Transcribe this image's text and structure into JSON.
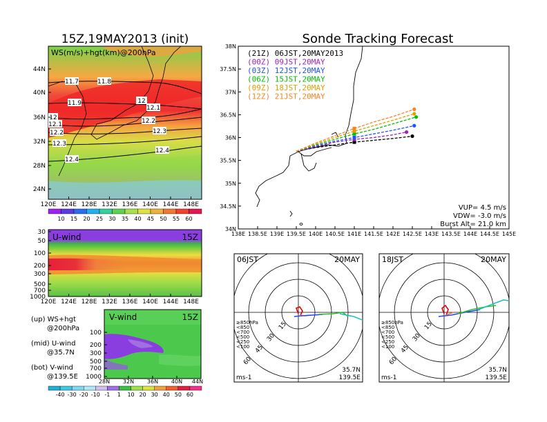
{
  "chart_data": [
    {
      "id": "ws_map",
      "type": "heatmap",
      "title": "15Z,19MAY2013 (init)",
      "label": "WS(m/s)+hgt(km)@200hPa",
      "x_ticks": [
        "120E",
        "124E",
        "128E",
        "132E",
        "136E",
        "140E",
        "144E",
        "148E"
      ],
      "y_ticks": [
        "44N",
        "40N",
        "36N",
        "32N",
        "28N",
        "24N"
      ],
      "contour_labels": [
        "11.7",
        "11.8",
        "11.9",
        "12",
        "12.1",
        "12",
        "12.1",
        "12.2",
        "12.2",
        "12.3",
        "12.3",
        "12.4",
        "12.4"
      ],
      "colorbar": [
        "10",
        "15",
        "20",
        "25",
        "30",
        "35",
        "40",
        "45",
        "50",
        "55",
        "60"
      ]
    },
    {
      "id": "u_wind",
      "type": "heatmap",
      "label": "U-wind",
      "time": "15Z",
      "x_ticks": [
        "120E",
        "124E",
        "128E",
        "132E",
        "136E",
        "140E",
        "144E",
        "148E"
      ],
      "y_ticks": [
        "30",
        "50",
        "100",
        "200",
        "300",
        "500",
        "700",
        "1000"
      ]
    },
    {
      "id": "v_wind",
      "type": "heatmap",
      "label": "V-wind",
      "time": "15Z",
      "x_ticks": [
        "28N",
        "32N",
        "36N",
        "40N",
        "44N"
      ],
      "y_ticks": [
        "100",
        "200",
        "300",
        "500",
        "700",
        "1000"
      ],
      "colorbar": [
        "-40",
        "-30",
        "-20",
        "-10",
        "-1",
        "1",
        "10",
        "20",
        "30",
        "40",
        "50",
        "60"
      ]
    },
    {
      "id": "tracking",
      "type": "line",
      "title": "Sonde Tracking Forecast",
      "x_ticks": [
        "138E",
        "138.5E",
        "139E",
        "139.5E",
        "140E",
        "140.5E",
        "141E",
        "141.5E",
        "142E",
        "142.5E",
        "143E",
        "143.5E",
        "144E",
        "144.5E",
        "145E"
      ],
      "y_ticks": [
        "38N",
        "37.5N",
        "37N",
        "36.5N",
        "36N",
        "35.5N",
        "35N",
        "34.5N",
        "34N"
      ],
      "xlim": [
        138,
        145
      ],
      "ylim": [
        34,
        38
      ],
      "series": [
        {
          "name": "(21Z) 06JST,20MAY2013",
          "color": "#000000",
          "x": [
            139.5,
            140.0,
            140.5,
            141.0,
            141.5,
            142.0,
            142.5
          ],
          "y": [
            35.7,
            35.78,
            35.84,
            35.9,
            35.94,
            35.98,
            36.03
          ]
        },
        {
          "name": "(00Z) 09JST,20MAY",
          "color": "#a020c0",
          "x": [
            139.5,
            140.0,
            140.5,
            141.0,
            141.5,
            142.0,
            142.35
          ],
          "y": [
            35.7,
            35.8,
            35.9,
            35.96,
            36.0,
            36.06,
            36.12
          ]
        },
        {
          "name": "(03Z) 12JST,20MAY",
          "color": "#2050ff",
          "x": [
            139.5,
            140.0,
            140.5,
            141.0,
            141.5,
            142.0,
            142.55
          ],
          "y": [
            35.7,
            35.82,
            35.92,
            36.0,
            36.08,
            36.16,
            36.26
          ]
        },
        {
          "name": "(06Z) 15JST,20MAY",
          "color": "#00c000",
          "x": [
            139.5,
            140.0,
            140.5,
            141.0,
            141.5,
            142.0,
            142.6
          ],
          "y": [
            35.7,
            35.84,
            35.96,
            36.08,
            36.18,
            36.3,
            36.45
          ]
        },
        {
          "name": "(09Z) 18JST,20MAY",
          "color": "#e0a000",
          "x": [
            139.5,
            140.0,
            140.5,
            141.0,
            141.5,
            142.0,
            142.55
          ],
          "y": [
            35.7,
            35.86,
            36.0,
            36.14,
            36.26,
            36.38,
            36.52
          ]
        },
        {
          "name": "(12Z) 21JST,20MAY",
          "color": "#ff8020",
          "x": [
            139.5,
            140.0,
            140.5,
            141.0,
            141.5,
            142.0,
            142.55
          ],
          "y": [
            35.7,
            35.88,
            36.04,
            36.2,
            36.34,
            36.46,
            36.62
          ]
        }
      ],
      "annotations": [
        "VUP= 4.5 m/s",
        "VDW= -3.0 m/s",
        "Burst Alt= 21.0 km"
      ]
    },
    {
      "id": "hodo_06",
      "type": "line",
      "label": "06JST",
      "date": "20MAY",
      "rings": [
        "15",
        "30",
        "45",
        "60"
      ],
      "legend": [
        "≥850hPa",
        "<850",
        "<700",
        "<500",
        "<250",
        "<100"
      ],
      "units": "ms-1",
      "location": [
        "35.7N",
        "139.5E"
      ]
    },
    {
      "id": "hodo_18",
      "type": "line",
      "label": "18JST",
      "date": "20MAY",
      "rings": [
        "15",
        "30",
        "45",
        "60"
      ],
      "legend": [
        "≥850hPa",
        "<850",
        "<700",
        "<500",
        "<250",
        "<100"
      ],
      "units": "ms-1",
      "location": [
        "35.7N",
        "139.5E"
      ]
    }
  ],
  "side_labels": {
    "up": "(up) WS+hgt",
    "up2": "@200hPa",
    "mid": "(mid) U-wind",
    "mid2": "@35.7N",
    "bot": "(bot) V-wind",
    "bot2": "@139.5E"
  }
}
